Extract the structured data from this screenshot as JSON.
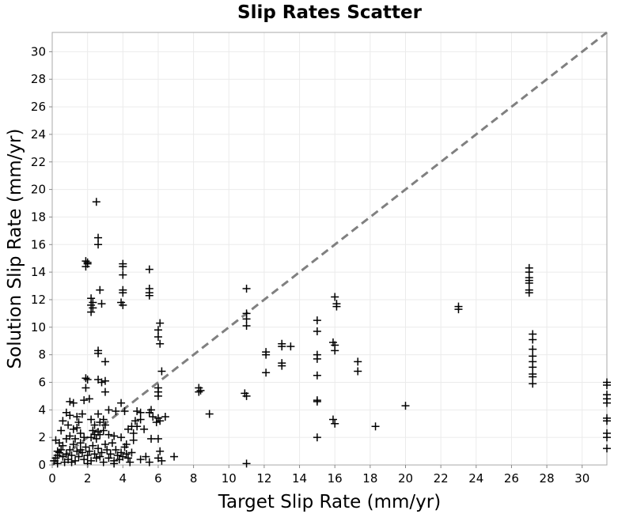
{
  "chart_data": {
    "type": "scatter",
    "title": "Slip Rates Scatter",
    "xlabel": "Target Slip Rate (mm/yr)",
    "ylabel": "Solution Slip Rate (mm/yr)",
    "xlim": [
      0,
      31.4
    ],
    "ylim": [
      0,
      31.4
    ],
    "xticks": [
      0,
      2,
      4,
      6,
      8,
      10,
      12,
      14,
      16,
      18,
      20,
      22,
      24,
      26,
      28,
      30
    ],
    "yticks": [
      0,
      2,
      4,
      6,
      8,
      10,
      12,
      14,
      16,
      18,
      20,
      22,
      24,
      26,
      28,
      30
    ],
    "grid": true,
    "marker": "+",
    "marker_color": "#000000",
    "reference_line": {
      "style": "dashed",
      "color": "#808080",
      "x": [
        0,
        31.4
      ],
      "y": [
        0,
        31.4
      ]
    },
    "points": [
      [
        2.5,
        19.1
      ],
      [
        2.6,
        16.5
      ],
      [
        2.6,
        16.0
      ],
      [
        1.9,
        14.8
      ],
      [
        2.0,
        14.7
      ],
      [
        1.9,
        14.4
      ],
      [
        2.0,
        14.6
      ],
      [
        4.0,
        14.6
      ],
      [
        4.0,
        14.4
      ],
      [
        4.0,
        13.8
      ],
      [
        5.5,
        14.2
      ],
      [
        2.7,
        12.7
      ],
      [
        2.2,
        12.1
      ],
      [
        2.3,
        11.8
      ],
      [
        2.2,
        11.6
      ],
      [
        2.3,
        11.4
      ],
      [
        2.2,
        11.1
      ],
      [
        2.8,
        11.7
      ],
      [
        4.0,
        12.7
      ],
      [
        4.0,
        12.5
      ],
      [
        3.9,
        11.8
      ],
      [
        4.0,
        11.6
      ],
      [
        5.5,
        12.8
      ],
      [
        5.5,
        12.5
      ],
      [
        5.5,
        12.3
      ],
      [
        6.1,
        10.3
      ],
      [
        6.0,
        9.8
      ],
      [
        6.0,
        9.3
      ],
      [
        6.1,
        8.8
      ],
      [
        2.6,
        8.3
      ],
      [
        2.6,
        8.1
      ],
      [
        3.0,
        7.5
      ],
      [
        2.6,
        6.2
      ],
      [
        2.8,
        6.0
      ],
      [
        3.0,
        6.1
      ],
      [
        3.0,
        5.3
      ],
      [
        1.9,
        6.3
      ],
      [
        2.0,
        6.2
      ],
      [
        1.9,
        5.6
      ],
      [
        2.1,
        4.8
      ],
      [
        1.8,
        4.7
      ],
      [
        6.2,
        6.8
      ],
      [
        6.0,
        5.6
      ],
      [
        6.0,
        5.3
      ],
      [
        6.0,
        5.0
      ],
      [
        3.9,
        4.5
      ],
      [
        4.1,
        3.9
      ],
      [
        3.6,
        3.9
      ],
      [
        3.2,
        4.0
      ],
      [
        2.9,
        3.3
      ],
      [
        2.6,
        3.7
      ],
      [
        2.7,
        3.1
      ],
      [
        3.0,
        2.9
      ],
      [
        1.0,
        4.6
      ],
      [
        1.2,
        4.5
      ],
      [
        0.8,
        3.8
      ],
      [
        1.0,
        3.6
      ],
      [
        0.6,
        3.2
      ],
      [
        1.4,
        3.5
      ],
      [
        1.7,
        3.7
      ],
      [
        1.5,
        3.1
      ],
      [
        2.2,
        3.3
      ],
      [
        2.4,
        2.9
      ],
      [
        2.3,
        2.5
      ],
      [
        2.4,
        2.2
      ],
      [
        2.6,
        2.4
      ],
      [
        2.2,
        2.0
      ],
      [
        2.5,
        1.9
      ],
      [
        2.7,
        2.2
      ],
      [
        4.8,
        3.9
      ],
      [
        5.0,
        3.8
      ],
      [
        4.7,
        3.2
      ],
      [
        5.0,
        3.3
      ],
      [
        4.8,
        2.8
      ],
      [
        5.2,
        2.6
      ],
      [
        4.6,
        2.3
      ],
      [
        5.6,
        4.0
      ],
      [
        5.5,
        3.8
      ],
      [
        5.7,
        3.5
      ],
      [
        6.0,
        3.4
      ],
      [
        6.4,
        3.5
      ],
      [
        5.9,
        3.1
      ],
      [
        6.1,
        3.2
      ],
      [
        3.5,
        2.1
      ],
      [
        3.9,
        2.0
      ],
      [
        4.3,
        2.6
      ],
      [
        4.5,
        2.8
      ],
      [
        4.2,
        1.5
      ],
      [
        4.6,
        1.8
      ],
      [
        0.2,
        1.8
      ],
      [
        0.4,
        1.6
      ],
      [
        0.3,
        1.0
      ],
      [
        0.6,
        1.4
      ],
      [
        0.8,
        1.9
      ],
      [
        1.0,
        2.1
      ],
      [
        1.2,
        2.6
      ],
      [
        1.4,
        2.7
      ],
      [
        1.6,
        2.3
      ],
      [
        1.8,
        2.0
      ],
      [
        0.1,
        0.3
      ],
      [
        0.2,
        0.5
      ],
      [
        0.3,
        0.7
      ],
      [
        0.4,
        0.9
      ],
      [
        0.5,
        1.1
      ],
      [
        0.6,
        0.6
      ],
      [
        0.7,
        0.2
      ],
      [
        0.8,
        0.8
      ],
      [
        0.9,
        0.4
      ],
      [
        1.0,
        1.1
      ],
      [
        1.1,
        0.7
      ],
      [
        1.2,
        1.5
      ],
      [
        1.3,
        0.3
      ],
      [
        1.4,
        1.0
      ],
      [
        1.5,
        0.6
      ],
      [
        1.6,
        1.6
      ],
      [
        1.7,
        0.9
      ],
      [
        1.8,
        0.4
      ],
      [
        1.9,
        1.3
      ],
      [
        2.0,
        0.7
      ],
      [
        2.1,
        1.0
      ],
      [
        2.2,
        0.3
      ],
      [
        2.3,
        1.4
      ],
      [
        2.4,
        0.8
      ],
      [
        2.5,
        0.5
      ],
      [
        2.6,
        1.2
      ],
      [
        2.7,
        0.6
      ],
      [
        2.8,
        0.9
      ],
      [
        2.9,
        0.2
      ],
      [
        3.0,
        1.5
      ],
      [
        3.1,
        1.1
      ],
      [
        3.2,
        0.5
      ],
      [
        3.3,
        0.8
      ],
      [
        3.4,
        1.6
      ],
      [
        3.5,
        0.3
      ],
      [
        3.6,
        1.1
      ],
      [
        3.7,
        0.7
      ],
      [
        3.8,
        0.4
      ],
      [
        3.9,
        0.9
      ],
      [
        4.0,
        0.6
      ],
      [
        4.1,
        1.3
      ],
      [
        4.2,
        0.8
      ],
      [
        4.3,
        0.5
      ],
      [
        4.4,
        0.2
      ],
      [
        4.5,
        0.9
      ],
      [
        5.0,
        0.4
      ],
      [
        5.3,
        0.6
      ],
      [
        5.5,
        0.2
      ],
      [
        6.0,
        0.5
      ],
      [
        6.2,
        0.3
      ],
      [
        5.6,
        1.9
      ],
      [
        6.0,
        1.9
      ],
      [
        6.1,
        1.0
      ],
      [
        6.9,
        0.6
      ],
      [
        0.5,
        2.5
      ],
      [
        0.9,
        2.9
      ],
      [
        1.3,
        1.9
      ],
      [
        1.6,
        1.1
      ],
      [
        2.9,
        2.5
      ],
      [
        3.2,
        2.2
      ],
      [
        1.1,
        0.2
      ],
      [
        0.3,
        0.1
      ],
      [
        2.0,
        0.1
      ],
      [
        3.5,
        0.1
      ],
      [
        8.3,
        5.6
      ],
      [
        8.4,
        5.4
      ],
      [
        8.3,
        5.3
      ],
      [
        8.9,
        3.7
      ],
      [
        11.0,
        12.8
      ],
      [
        11.0,
        11.0
      ],
      [
        11.0,
        10.6
      ],
      [
        11.0,
        10.1
      ],
      [
        10.9,
        5.2
      ],
      [
        11.0,
        5.0
      ],
      [
        11.0,
        0.1
      ],
      [
        12.1,
        8.2
      ],
      [
        12.1,
        8.0
      ],
      [
        12.1,
        6.7
      ],
      [
        13.0,
        8.8
      ],
      [
        13.0,
        8.6
      ],
      [
        13.5,
        8.6
      ],
      [
        13.0,
        7.4
      ],
      [
        13.0,
        7.2
      ],
      [
        15.0,
        10.5
      ],
      [
        15.0,
        9.7
      ],
      [
        15.0,
        8.0
      ],
      [
        15.0,
        7.7
      ],
      [
        15.0,
        6.5
      ],
      [
        15.0,
        4.7
      ],
      [
        15.0,
        4.6
      ],
      [
        15.0,
        2.0
      ],
      [
        16.0,
        12.2
      ],
      [
        16.1,
        11.7
      ],
      [
        16.1,
        11.5
      ],
      [
        15.9,
        8.9
      ],
      [
        16.0,
        8.7
      ],
      [
        16.0,
        8.3
      ],
      [
        15.9,
        3.3
      ],
      [
        16.0,
        3.0
      ],
      [
        17.3,
        7.5
      ],
      [
        17.3,
        6.8
      ],
      [
        18.3,
        2.8
      ],
      [
        20.0,
        4.3
      ],
      [
        23.0,
        11.5
      ],
      [
        23.0,
        11.3
      ],
      [
        27.0,
        14.3
      ],
      [
        27.0,
        14.0
      ],
      [
        27.0,
        13.6
      ],
      [
        27.0,
        13.4
      ],
      [
        27.0,
        13.2
      ],
      [
        27.0,
        12.7
      ],
      [
        27.0,
        12.5
      ],
      [
        27.2,
        9.5
      ],
      [
        27.2,
        9.1
      ],
      [
        27.2,
        8.4
      ],
      [
        27.2,
        7.9
      ],
      [
        27.2,
        7.5
      ],
      [
        27.2,
        7.1
      ],
      [
        27.2,
        6.6
      ],
      [
        27.2,
        6.4
      ],
      [
        27.2,
        5.9
      ],
      [
        31.4,
        6.0
      ],
      [
        31.4,
        5.8
      ],
      [
        31.4,
        5.1
      ],
      [
        31.4,
        4.8
      ],
      [
        31.4,
        4.5
      ],
      [
        31.4,
        3.4
      ],
      [
        31.4,
        3.2
      ],
      [
        31.4,
        2.3
      ],
      [
        31.4,
        2.0
      ],
      [
        31.4,
        1.2
      ]
    ]
  }
}
